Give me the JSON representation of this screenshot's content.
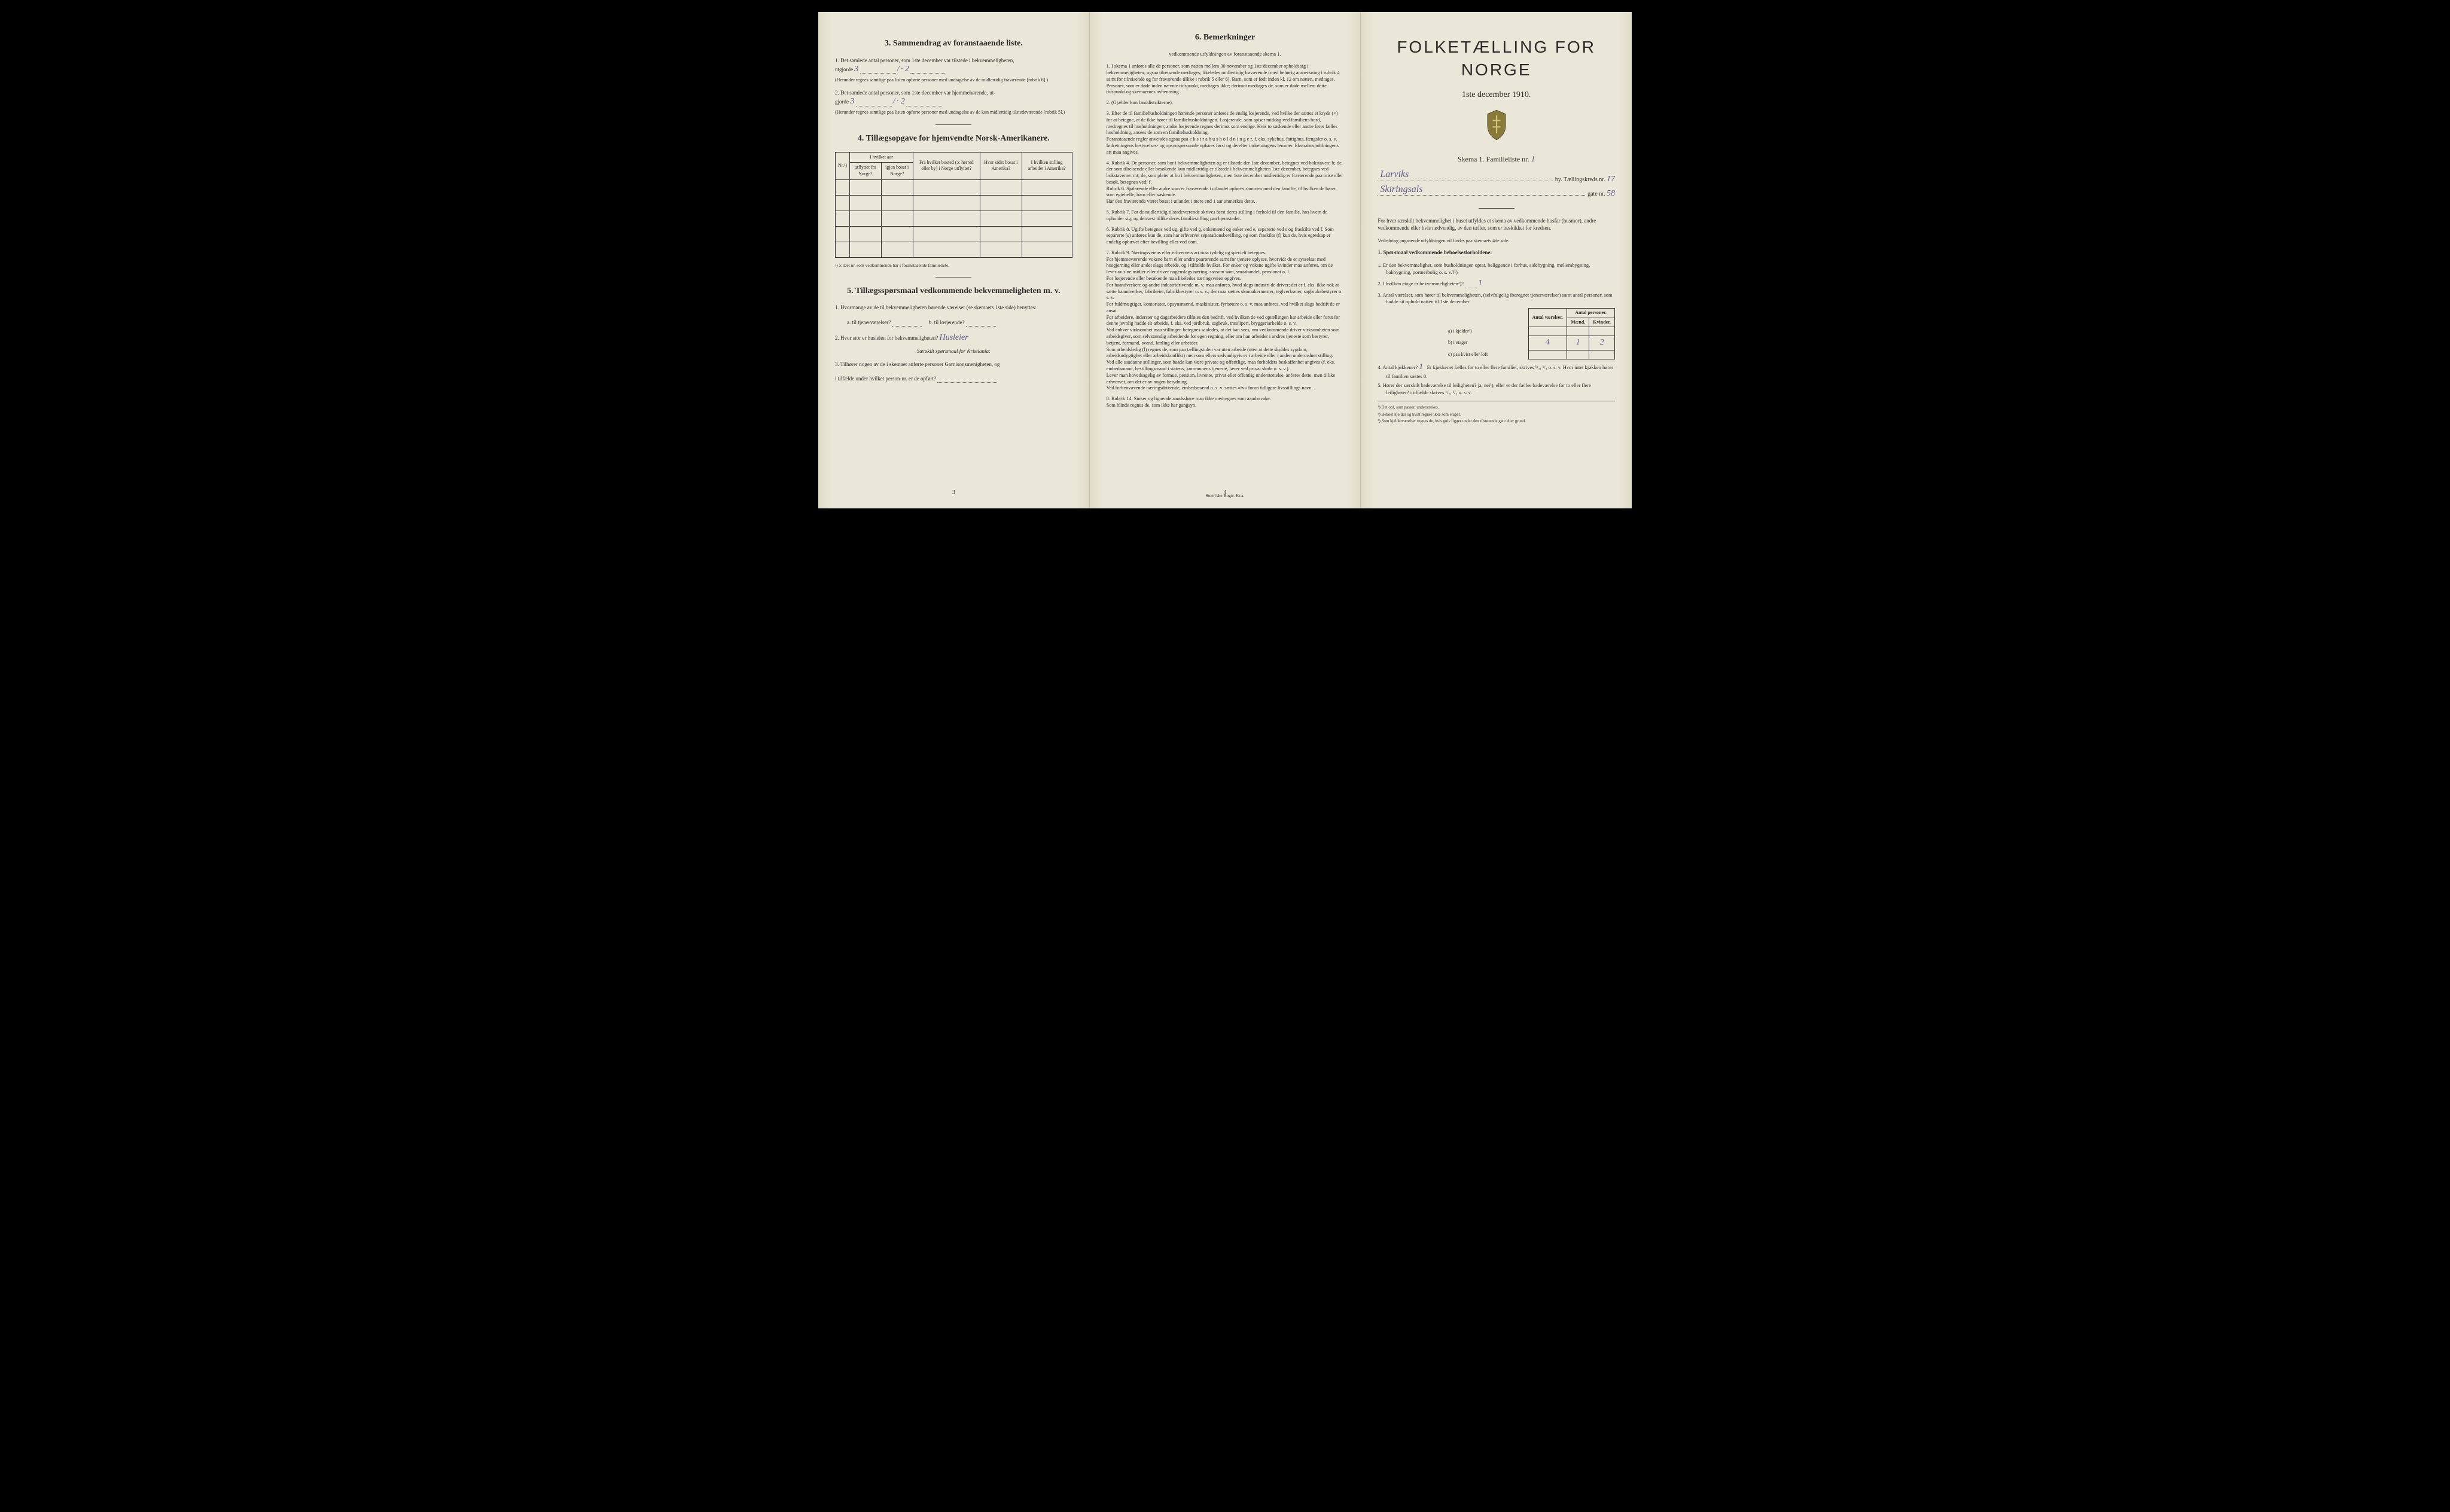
{
  "page1": {
    "sec3": {
      "title": "3.  Sammendrag av foranstaaende liste.",
      "q1": "1.  Det samlede antal personer, som 1ste december var tilstede i bekvemmeligheten,",
      "q1_lead": "utgjorde",
      "q1_val": "3",
      "q1_sep": "/",
      "q1_val2": "· 2",
      "q1_note": "(Herunder regnes samtlige paa listen opførte personer med undtagelse av de midlertidig fraværende [rubrik 6].)",
      "q2": "2.  Det samlede antal personer, som 1ste december var hjemmehørende, ut-",
      "q2_lead": "gjorde",
      "q2_val": "3",
      "q2_sep": "/",
      "q2_val2": "· 2",
      "q2_note": "(Herunder regnes samtlige paa listen opførte personer med undtagelse av de kun midlertidig tilstedeværende [rubrik 5].)"
    },
    "sec4": {
      "title": "4.  Tillægsopgave for hjemvendte Norsk-Amerikanere.",
      "headers": {
        "nr": "Nr.¹)",
        "hv_aar": "I hvilket aar",
        "utflyt": "utflyttet fra Norge?",
        "igjen": "igjen bosat i Norge?",
        "fra": "Fra hvilket bosted (ɔ: herred eller by) i Norge utflyttet?",
        "hvor": "Hvor sidst bosat i Amerika?",
        "stilling": "I hvilken stilling arbeidet i Amerika?"
      },
      "footnote": "¹) ɔ: Det nr. som vedkommende har i foranstaaende familieliste."
    },
    "sec5": {
      "title": "5.  Tillægsspørsmaal vedkommende bekvemmeligheten m. v.",
      "q1": "1.  Hvormange av de til bekvemmeligheten hørende værelser (se skemaets 1ste side) benyttes:",
      "q1a": "a.  til tjenerværelser?",
      "q1b": "b.  til losjerende?",
      "q2": "2.  Hvor stor er husleien for bekvemmeligheten?",
      "q2_hand": "Husleier",
      "q2_sub": "Særskilt spørsmaal for Kristiania:",
      "q3": "3.  Tilhører nogen av de i skemaet anførte personer Garnisonsmenigheten, og",
      "q3b": "i tilfælde under hvilket person-nr. er de opført?"
    },
    "pagenum": "3"
  },
  "page2": {
    "title": "6.  Bemerkninger",
    "sub": "vedkommende utfyldningen av foranstaaende skema 1.",
    "items": [
      "1.  I skema 1 anføres alle de personer, som natten mellem 30 november og 1ste december opholdt sig i bekvemmeligheten; ogsaa tilreisende medtages; likeledes midlertidig fraværende (med behørig anmerkning i rubrik 4 samt for tilreisende og for fraværende tillike i rubrik 5 eller 6). Barn, som er født inden kl. 12 om natten, medtages. Personer, som er døde inden nævnte tidspunkt, medtages ikke; derimot medtages de, som er døde mellem dette tidspunkt og skemaernes avhentning.",
      "2.  (Gjælder kun landdistrikterne).",
      "3.  Efter de til familiehusholdningen hørende personer anføres de enslig losjerende, ved hvilke der sættes et kryds (×) for at betegne, at de ikke hører til familiehusholdningen. Losjerende, som spiser middag ved familiens bord, medregnes til husholdningen; andre losjerende regnes derimot som enslige. Hvis to søskende eller andre fører fælles husholdning, ansees de som en familiehusholdning.\n   Foranstaaende regler anvendes ogsaa paa e k s t r a h u s h o l d n i n g e r, f. eks. sykehus, fattighus, fængsler o. s. v. Indretningens bestyrelses- og opsynspersonale opføres først og derefter indretningens lemmer. Ekstrahusholdningens art maa angives.",
      "4.  Rubrik 4. De personer, som bor i bekvemmeligheten og er tilstede der 1ste december, betegnes ved bokstaven: b; de, der som tilreisende eller besøkende kun midlertidig er tilstede i bekvemmeligheten 1ste december, betegnes ved bokstaverne: mt; de, som pleier at bo i bekvemmeligheten, men 1ste december midlertidig er fraværende paa reise eller besøk, betegnes ved: f.\n   Rubrik 6. Sjøfarende eller andre som er fraværende i utlandet opføres sammen med den familie, til hvilken de hører som egtefælle, barn eller søskende.\n   Har den fraværende været bosat i utlandet i mere end 1 aar anmerkes dette.",
      "5.  Rubrik 7. For de midlertidig tilstedeværende skrives først deres stilling i forhold til den familie, hos hvem de opholder sig, og dernæst tillike deres familiestilling paa hjemstedet.",
      "6.  Rubrik 8. Ugifte betegnes ved ug, gifte ved g, enkemænd og enker ved e, separerte ved s og fraskilte ved f. Som separerte (s) anføres kun de, som har erhvervet separationsbevilling, og som fraskilte (f) kun de, hvis egteskap er endelig ophævet efter bevilling eller ved dom.",
      "7.  Rubrik 9. Næringsveiens eller erhvervets art maa tydelig og specielt betegnes.\n   For hjemmeværende voksne barn eller andre paarørende samt for tjenere oplyses, hvorvidt de er sysselsat med husgjerning eller andet slags arbeide, og i tilfælde hvilket. For enker og voksne ugifte kvinder maa anføres, om de lever av sine midler eller driver nogenslags næring, saasom søm, smaahandel, pensionat o. l.\n   For losjerende eller besøkende maa likeledes næringsveien opgives.\n   For haandverkere og andre industridrivende m. v. maa anføres, hvad slags industri de driver; det er f. eks. ikke nok at sætte haandverker, fabrikeier, fabrikbestyrer o. s. v.; der maa sættes skomakermester, teglverkseier, sagbruksbestyrer o. s. v.\n   For fuldmægtiger, kontorister, opsynsmænd, maskinister, fyrbøtere o. s. v. maa anføres, ved hvilket slags bedrift de er ansat.\n   For arbeidere, inderster og dagarbeidere tilføies den bedrift, ved hvilken de ved optællingen har arbeide eller forut for denne jevnlig hadde sit arbeide, f. eks. ved jordbruk, sagbruk, træsliperi, bryggeriarbeide o. s. v.\n   Ved enhver virksomhet maa stillingen betegnes saaledes, at det kan sees, om vedkommende driver virksomheten som arbeidsgiver, som selvstændig arbeidende for egen regning, eller om han arbeider i andres tjeneste som bestyrer, betjent, formand, svend, lærling eller arbeider.\n   Som arbeidsledig (l) regnes de, som paa tællingstiden var uten arbeide (uten at dette skyldes sygdom, arbeidsudygtighet eller arbeidskonflikt) men som ellers sedvanligvis er i arbeide eller i anden underordnet stilling.\n   Ved alle saadanne stillinger, som baade kan være private og offentlige, maa forholdets beskaffenhet angives (f. eks. embedsmand, bestillingsmand i statens, kommunens tjeneste, lærer ved privat skole o. s. v.).\n   Lever man hovedsagelig av formue, pension, livrente, privat eller offentlig understøttelse, anføres dette, men tillike erhvervet, om det er av nogen betydning.\n   Ved forhenværende næringsdrivende, embedsmænd o. s. v. sættes «fv» foran tidligere livsstillings navn.",
      "8.  Rubrik 14. Sinker og lignende aandssløve maa ikke medregnes som aandssvake.\n   Som blinde regnes de, som ikke har gangsyn."
    ],
    "pagenum": "4",
    "printer": "Steen'ske Bogtr.  Kr.a."
  },
  "page3": {
    "title": "FOLKETÆLLING FOR NORGE",
    "date": "1ste december 1910.",
    "skema": "Skema 1.   Familieliste nr.",
    "skema_val": "1",
    "by_hand": "Larviks",
    "by_tail": "by.  Tællingskreds nr.",
    "kreds_val": "17",
    "gate_hand": "Skiringsals",
    "gate_tail": "gate nr.",
    "gate_val": "58",
    "intro": "For hver særskilt bekvemmelighet i huset utfyldes et skema av vedkommende husfar (husmor), andre vedkommende eller hvis nødvendig, av den tæller, som er beskikket for kredsen.",
    "intro2": "Veiledning angaaende utfyldningen vil findes paa skemaets 4de side.",
    "q1_title": "1.  Spørsmaal vedkommende beboelsesforholdene:",
    "q1_1": "1.  Er den bekvemmelighet, som husholdningen optar, beliggende i forhus, sidebygning, mellembygning, bakbygning, portnerbolig o. s. v.?¹)",
    "q1_2": "2.  I hvilken etage er bekvemmeligheten²)?",
    "q1_2_val": "1",
    "q1_3": "3.  Antal værelser, som hører til bekvemmeligheten, (selvfølgelig iberegnet tjenerværelser) samt antal personer, som hadde sit ophold natten til 1ste december",
    "tbl": {
      "h1": "Antal værelser.",
      "h2": "Antal personer.",
      "h2a": "Mænd.",
      "h2b": "Kvinder.",
      "ra": "a) i kjelder³)",
      "rb": "b) i etager",
      "rb_v": "4",
      "rb_m": "1",
      "rb_k": "2",
      "rc": "c) paa kvist eller loft"
    },
    "q1_4": "4.  Antal kjøkkener?",
    "q1_4_val": "1",
    "q1_4_tail": "Er kjøkkenet fælles for to eller flere familier, skrives ¹/₂, ¹/₃ o. s. v.  Hvor intet kjøkken hører til familien sættes 0.",
    "q1_5": "5.  Hører der særskilt badeværelse til leiligheten?  ja, nei¹), eller er der fælles badeværelse for to eller flere leiligheter?  i tilfælde skrives ¹/₂, ¹/₃ o. s. v.",
    "fn1": "¹) Det ord, som passer, understrekes.",
    "fn2": "²) Beboet kjelder og kvist regnes ikke som etager.",
    "fn3": "³) Som kjelderværelser regnes de, hvis gulv ligger under den tilstøtende gate eller grund."
  }
}
